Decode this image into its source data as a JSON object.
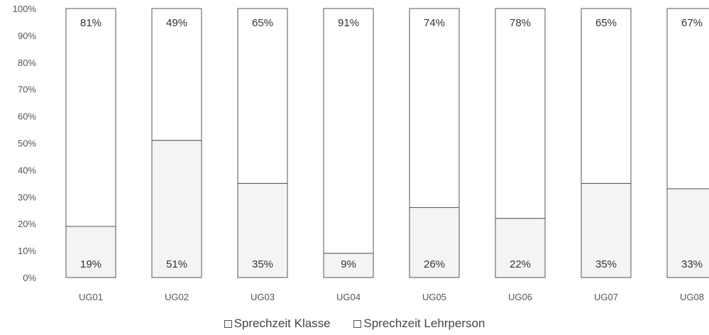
{
  "chart_data": {
    "type": "bar",
    "stacked": true,
    "percent_stacked": true,
    "categories": [
      "UG01",
      "UG02",
      "UG03",
      "UG04",
      "UG05",
      "UG06",
      "UG07",
      "UG08"
    ],
    "series": [
      {
        "name": "Sprechzeit Klasse",
        "values": [
          19,
          51,
          35,
          9,
          26,
          22,
          35,
          33
        ],
        "value_labels": [
          "19%",
          "51%",
          "35%",
          "9%",
          "26%",
          "22%",
          "35%",
          "33%"
        ],
        "color": "#f4f4f4"
      },
      {
        "name": "Sprechzeit Lehrperson",
        "values": [
          81,
          49,
          65,
          91,
          74,
          78,
          65,
          67
        ],
        "value_labels": [
          "81%",
          "49%",
          "65%",
          "91%",
          "74%",
          "78%",
          "65%",
          "67%"
        ],
        "color": "#ffffff"
      }
    ],
    "y_ticks": [
      "0%",
      "10%",
      "20%",
      "30%",
      "40%",
      "50%",
      "60%",
      "70%",
      "80%",
      "90%",
      "100%"
    ],
    "ylim": [
      0,
      100
    ],
    "grid": false,
    "legend_position": "bottom"
  }
}
